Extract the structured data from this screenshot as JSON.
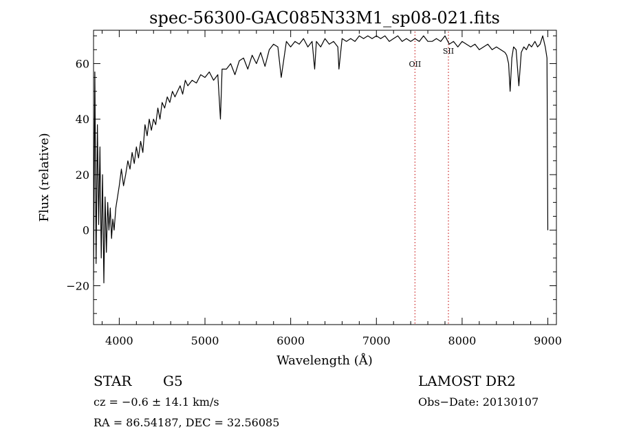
{
  "chart_data": {
    "type": "line",
    "title": "spec-56300-GAC085N33M1_sp08-021.fits",
    "xlabel": "Wavelength (Å)",
    "ylabel": "Flux (relative)",
    "xlim": [
      3700,
      9100
    ],
    "ylim": [
      -34,
      72
    ],
    "x_ticks": [
      4000,
      5000,
      6000,
      7000,
      8000,
      9000
    ],
    "y_ticks": [
      -20,
      0,
      20,
      40,
      60
    ],
    "grid": false,
    "series": [
      {
        "color": "#000000",
        "x": [
          3700,
          3715,
          3730,
          3745,
          3760,
          3775,
          3790,
          3805,
          3820,
          3835,
          3850,
          3865,
          3880,
          3895,
          3910,
          3925,
          3940,
          3960,
          3980,
          4000,
          4025,
          4050,
          4075,
          4100,
          4125,
          4150,
          4175,
          4200,
          4225,
          4250,
          4275,
          4300,
          4325,
          4350,
          4375,
          4400,
          4425,
          4450,
          4475,
          4500,
          4530,
          4560,
          4590,
          4620,
          4650,
          4680,
          4710,
          4740,
          4770,
          4800,
          4850,
          4900,
          4950,
          5000,
          5050,
          5100,
          5150,
          5180,
          5200,
          5250,
          5300,
          5350,
          5400,
          5450,
          5500,
          5550,
          5600,
          5650,
          5700,
          5750,
          5800,
          5850,
          5890,
          5950,
          6000,
          6050,
          6100,
          6150,
          6200,
          6250,
          6280,
          6300,
          6350,
          6400,
          6450,
          6500,
          6550,
          6563,
          6600,
          6650,
          6700,
          6750,
          6800,
          6850,
          6900,
          6950,
          7000,
          7050,
          7100,
          7150,
          7200,
          7250,
          7300,
          7350,
          7400,
          7450,
          7500,
          7550,
          7600,
          7650,
          7700,
          7750,
          7800,
          7850,
          7900,
          7950,
          8000,
          8050,
          8100,
          8150,
          8200,
          8250,
          8300,
          8350,
          8400,
          8450,
          8500,
          8520,
          8542,
          8560,
          8580,
          8600,
          8630,
          8662,
          8690,
          8720,
          8750,
          8780,
          8810,
          8850,
          8880,
          8910,
          8940,
          8970,
          8990,
          9000
        ],
        "y": [
          -18,
          57,
          -12,
          38,
          2,
          30,
          -10,
          20,
          -19,
          12,
          -8,
          10,
          0,
          8,
          -3,
          4,
          0,
          8,
          12,
          16,
          22,
          16,
          20,
          25,
          22,
          28,
          24,
          30,
          26,
          32,
          28,
          38,
          34,
          40,
          36,
          40,
          38,
          44,
          40,
          46,
          44,
          48,
          46,
          50,
          48,
          50,
          52,
          49,
          54,
          52,
          54,
          53,
          56,
          55,
          57,
          54,
          56,
          40,
          58,
          58,
          60,
          56,
          61,
          62,
          58,
          63,
          60,
          64,
          59,
          65,
          67,
          66,
          55,
          68,
          66,
          68,
          67,
          69,
          66,
          68,
          58,
          68,
          66,
          69,
          67,
          68,
          66,
          58,
          69,
          68,
          69,
          68,
          70,
          69,
          70,
          69,
          70,
          69,
          70,
          68,
          69,
          70,
          68,
          69,
          68,
          69,
          68,
          70,
          68,
          68,
          69,
          68,
          70,
          67,
          68,
          66,
          68,
          67,
          66,
          67,
          65,
          66,
          67,
          65,
          66,
          65,
          64,
          63,
          60,
          50,
          62,
          66,
          65,
          52,
          64,
          66,
          65,
          67,
          66,
          68,
          66,
          67,
          70,
          66,
          62,
          0
        ]
      }
    ],
    "lines": [
      {
        "label": "OII",
        "x": 7450,
        "color": "#cc2222"
      },
      {
        "label": "SII",
        "x": 7840,
        "color": "#cc2222"
      }
    ]
  },
  "info": {
    "object_class": "STAR",
    "subclass": "G5",
    "survey": "LAMOST DR2",
    "cz": "cz = −0.6 ± 14.1 km/s",
    "obs_date": "Obs−Date: 20130107",
    "coords": "RA =  86.54187, DEC =  32.56085"
  }
}
